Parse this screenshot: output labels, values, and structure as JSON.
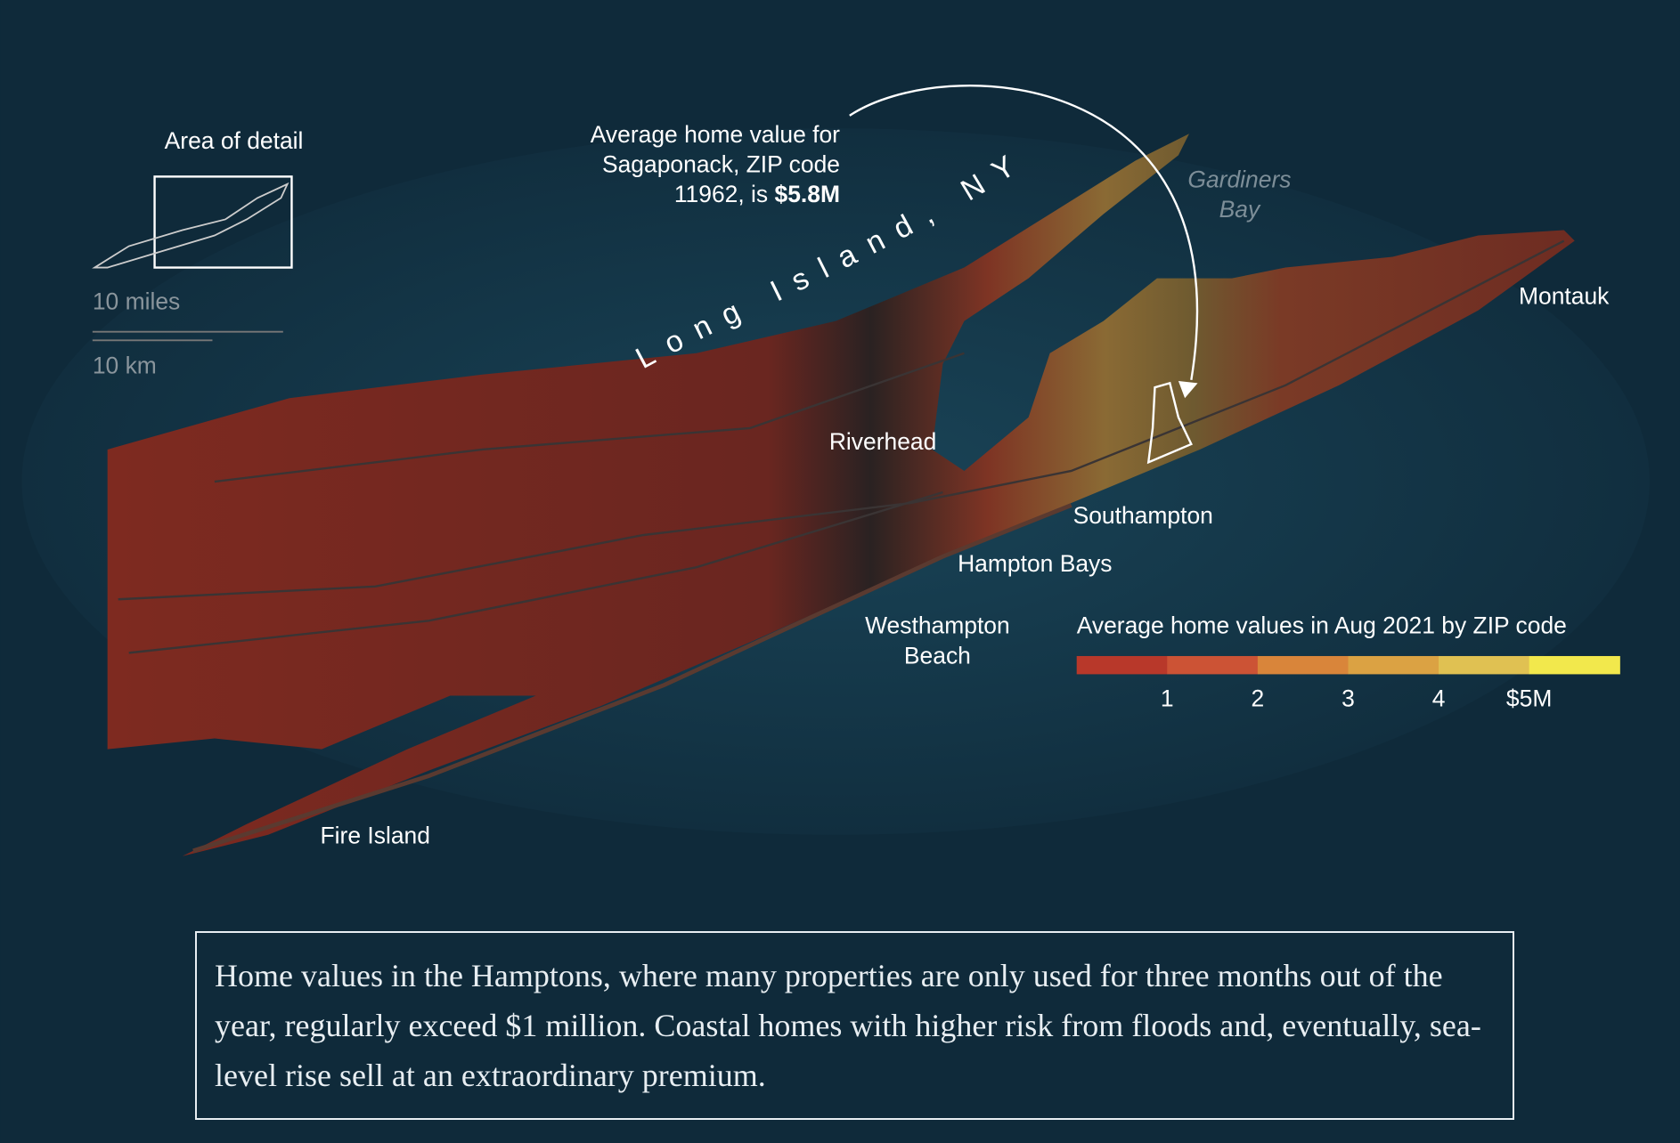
{
  "map": {
    "inset": {
      "title": "Area of detail",
      "scale_miles": "10 miles",
      "scale_km": "10 km"
    },
    "region_label": "Long Island, NY",
    "water_label": [
      "Gardiners",
      "Bay"
    ],
    "annotation": {
      "lines": [
        "Average home value for",
        "Sagaponack, ZIP code",
        "11962, is "
      ],
      "highlight": "$5.8M"
    },
    "places": [
      {
        "lines": [
          "Riverhead"
        ]
      },
      {
        "lines": [
          "Southampton"
        ]
      },
      {
        "lines": [
          "Hampton Bays"
        ]
      },
      {
        "lines": [
          "Westhampton",
          "Beach"
        ]
      },
      {
        "lines": [
          "Montauk"
        ]
      },
      {
        "lines": [
          "Fire Island"
        ]
      }
    ],
    "legend": {
      "title": "Average home values in Aug 2021 by ZIP code",
      "colors": [
        "#b8382a",
        "#cc5335",
        "#d9853a",
        "#dba243",
        "#e0c152",
        "#f2e84c"
      ],
      "lim": [
        0,
        6
      ],
      "ticks": [
        1,
        2,
        3,
        4,
        {
          "value": 5,
          "label": "$5M"
        }
      ]
    },
    "caption": "Home values in the Hamptons, where many properties are only used for three months out of the year, regularly exceed $1 million. Coastal homes with higher risk from floods and, eventually, sea-level rise sell at an extraordinary premium."
  }
}
